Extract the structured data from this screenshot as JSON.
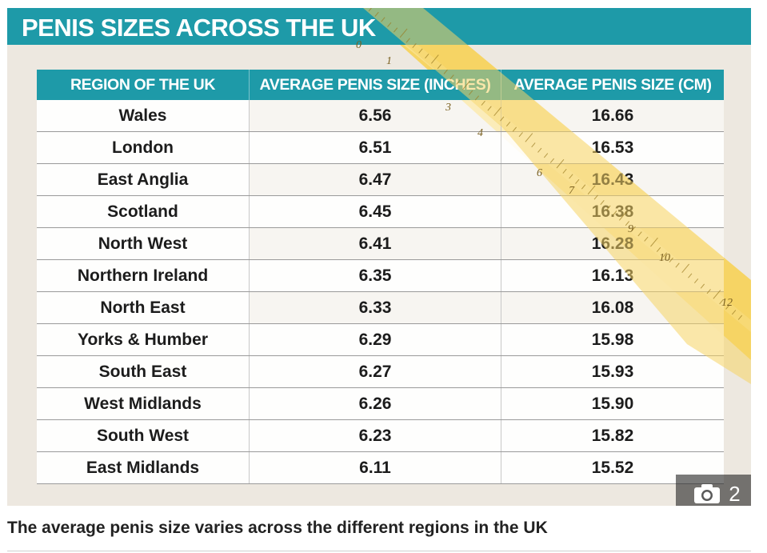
{
  "banner": {
    "title": "PENIS SIZES ACROSS THE UK"
  },
  "table": {
    "headers": [
      "REGION OF THE UK",
      "AVERAGE PENIS SIZE (INCHES)",
      "AVERAGE PENIS SIZE (CM)"
    ],
    "rows": [
      {
        "region": "Wales",
        "inches": "6.56",
        "cm": "16.66"
      },
      {
        "region": "London",
        "inches": "6.51",
        "cm": "16.53"
      },
      {
        "region": "East Anglia",
        "inches": "6.47",
        "cm": "16.43"
      },
      {
        "region": "Scotland",
        "inches": "6.45",
        "cm": "16.38"
      },
      {
        "region": "North West",
        "inches": "6.41",
        "cm": "16.28"
      },
      {
        "region": "Northern Ireland",
        "inches": "6.35",
        "cm": "16.13"
      },
      {
        "region": "North East",
        "inches": "6.33",
        "cm": "16.08"
      },
      {
        "region": "Yorks & Humber",
        "inches": "6.29",
        "cm": "15.98"
      },
      {
        "region": "South East",
        "inches": "6.27",
        "cm": "15.93"
      },
      {
        "region": "West Midlands",
        "inches": "6.26",
        "cm": "15.90"
      },
      {
        "region": "South West",
        "inches": "6.23",
        "cm": "15.82"
      },
      {
        "region": "East Midlands",
        "inches": "6.11",
        "cm": "15.52"
      }
    ]
  },
  "ruler_numbers": [
    "0",
    "1",
    "3",
    "4",
    "6",
    "7",
    "9",
    "10",
    "12"
  ],
  "gallery": {
    "icon": "camera-icon",
    "count": "2"
  },
  "caption": "The average penis size varies across the different regions in the UK",
  "colors": {
    "accent": "#1e9aa8",
    "ruler": "#f6d464",
    "background": "#ede8e0"
  }
}
